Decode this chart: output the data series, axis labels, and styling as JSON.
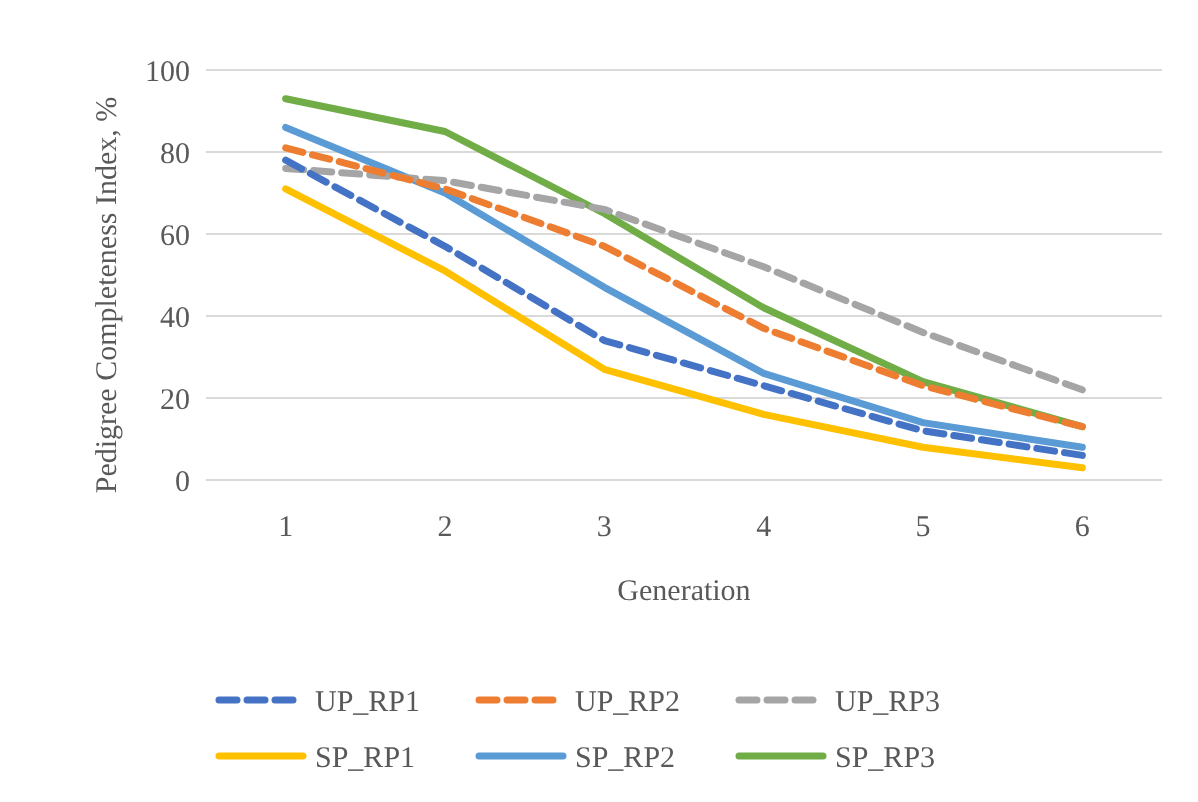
{
  "chart_data": {
    "type": "line",
    "xlabel": "Generation",
    "ylabel": "Pedigree Completeness Index, %",
    "categories": [
      "1",
      "2",
      "3",
      "4",
      "5",
      "6"
    ],
    "ylim": [
      0,
      100
    ],
    "yticks": [
      0,
      20,
      40,
      60,
      80,
      100
    ],
    "grid": "y",
    "legend": "bottom",
    "marker": "none",
    "series": [
      {
        "name": "UP_RP1",
        "color": "#4472c4",
        "line_style": "dashed",
        "values": [
          78,
          57,
          34,
          23,
          12,
          6
        ]
      },
      {
        "name": "UP_RP2",
        "color": "#ed7d31",
        "line_style": "dashed",
        "values": [
          81,
          71,
          57,
          37,
          23,
          13
        ]
      },
      {
        "name": "UP_RP3",
        "color": "#a5a5a5",
        "line_style": "dashed",
        "values": [
          76,
          73,
          66,
          52,
          36,
          22
        ]
      },
      {
        "name": "SP_RP1",
        "color": "#ffc000",
        "line_style": "solid",
        "values": [
          71,
          51,
          27,
          16,
          8,
          3
        ]
      },
      {
        "name": "SP_RP2",
        "color": "#5b9bd5",
        "line_style": "solid",
        "values": [
          86,
          70,
          47,
          26,
          14,
          8
        ]
      },
      {
        "name": "SP_RP3",
        "color": "#70ad47",
        "line_style": "solid",
        "values": [
          93,
          85,
          65,
          42,
          24,
          13
        ]
      }
    ]
  }
}
